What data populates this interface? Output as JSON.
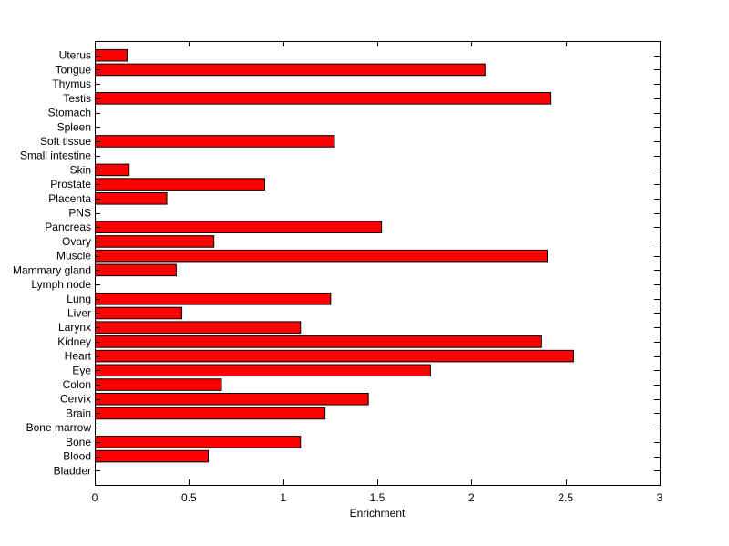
{
  "chart_data": {
    "type": "bar",
    "orientation": "horizontal",
    "title": "",
    "xlabel": "Enrichment",
    "ylabel": "",
    "xlim": [
      0,
      3
    ],
    "xticks": [
      "0",
      "0.5",
      "1",
      "1.5",
      "2",
      "2.5",
      "3"
    ],
    "grid": false,
    "bar_color": "#ff0000",
    "categories": [
      "Bladder",
      "Blood",
      "Bone",
      "Bone marrow",
      "Brain",
      "Cervix",
      "Colon",
      "Eye",
      "Heart",
      "Kidney",
      "Larynx",
      "Liver",
      "Lung",
      "Lymph node",
      "Mammary gland",
      "Muscle",
      "Ovary",
      "Pancreas",
      "PNS",
      "Placenta",
      "Prostate",
      "Skin",
      "Small intestine",
      "Soft tissue",
      "Spleen",
      "Stomach",
      "Testis",
      "Thymus",
      "Tongue",
      "Uterus"
    ],
    "values": [
      0,
      0.6,
      1.09,
      0,
      1.22,
      1.45,
      0.67,
      1.78,
      2.54,
      2.37,
      1.09,
      0.46,
      1.25,
      0,
      0.43,
      2.4,
      0.63,
      1.52,
      0,
      0.38,
      0.9,
      0.18,
      0,
      1.27,
      0,
      0,
      2.42,
      0,
      2.07,
      0.17
    ]
  }
}
